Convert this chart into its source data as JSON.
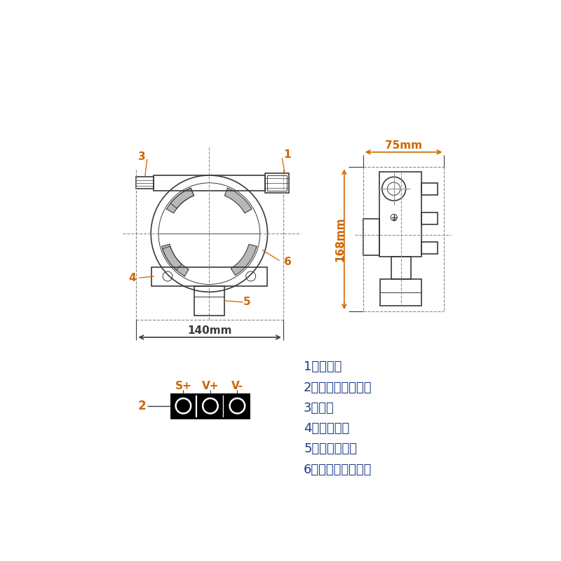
{
  "bg_color": "#ffffff",
  "line_color": "#3a3a3a",
  "dim_color_orange": "#cc6600",
  "dim_color_black": "#3a3a3a",
  "label_color_num": "#cc6600",
  "label_color_text": "#1a3a8a",
  "dim_75mm": "75mm",
  "dim_168mm": "168mm",
  "dim_140mm": "140mm",
  "legend_items": [
    "1、入线孔",
    "2、变送器接线端子",
    "3、堵头",
    "4、安装支架",
    "5、气敏传感器",
    "6、传感器接线端子"
  ],
  "terminal_labels": [
    "S+",
    "V+",
    "V-"
  ]
}
